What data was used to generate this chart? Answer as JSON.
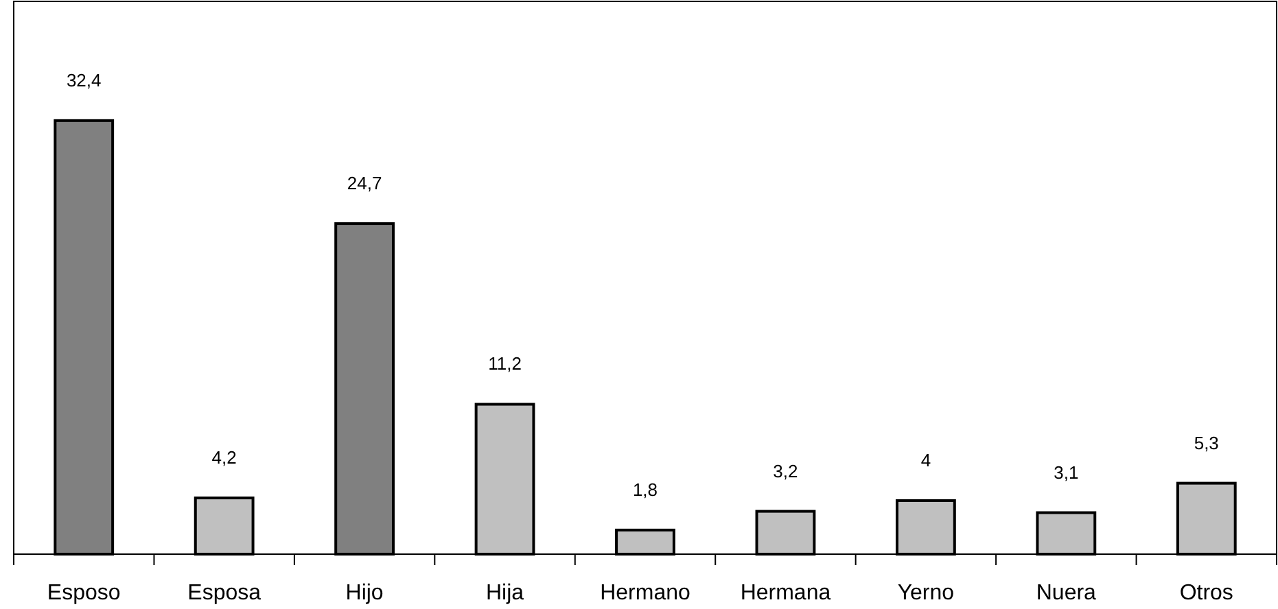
{
  "chart_data": {
    "type": "bar",
    "categories": [
      "Esposo",
      "Esposa",
      "Hijo",
      "Hija",
      "Hermano",
      "Hermana",
      "Yerno",
      "Nuera",
      "Otros"
    ],
    "values": [
      32.4,
      4.2,
      24.7,
      11.2,
      1.8,
      3.2,
      4,
      3.1,
      5.3
    ],
    "colors": [
      "#808080",
      "#c0c0c0",
      "#808080",
      "#c0c0c0",
      "#c0c0c0",
      "#c0c0c0",
      "#c0c0c0",
      "#c0c0c0",
      "#c0c0c0"
    ],
    "value_labels": [
      "32,4",
      "4,2",
      "24,7",
      "11,2",
      "1,8",
      "3,2",
      "4",
      "3,1",
      "5,3"
    ],
    "tick_labels": "x"
  }
}
